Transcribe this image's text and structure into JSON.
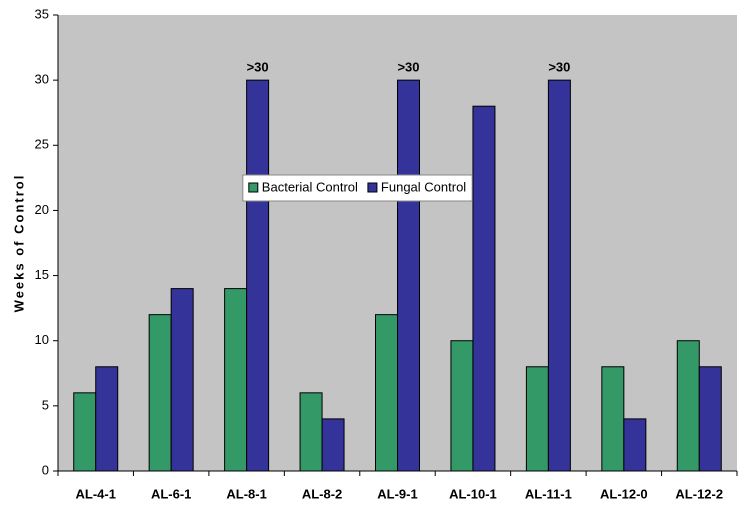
{
  "chart_data": {
    "type": "bar",
    "y_label": "Weeks of Control",
    "categories": [
      "AL-4-1",
      "AL-6-1",
      "AL-8-1",
      "AL-8-2",
      "AL-9-1",
      "AL-10-1",
      "AL-11-1",
      "AL-12-0",
      "AL-12-2"
    ],
    "series": [
      {
        "name": "Bacterial Control",
        "color": "#339966",
        "values": [
          6,
          12,
          14,
          6,
          12,
          10,
          8,
          8,
          10
        ]
      },
      {
        "name": "Fungal Control",
        "color": "#333399",
        "values": [
          8,
          14,
          30,
          4,
          30,
          28,
          30,
          4,
          8
        ],
        "value_labels": [
          null,
          null,
          ">30",
          null,
          ">30",
          null,
          ">30",
          null,
          null
        ]
      }
    ],
    "ylim": [
      0,
      35
    ],
    "yticks": [
      0,
      5,
      10,
      15,
      20,
      25,
      30,
      35
    ],
    "grid": false,
    "legend": "center"
  }
}
